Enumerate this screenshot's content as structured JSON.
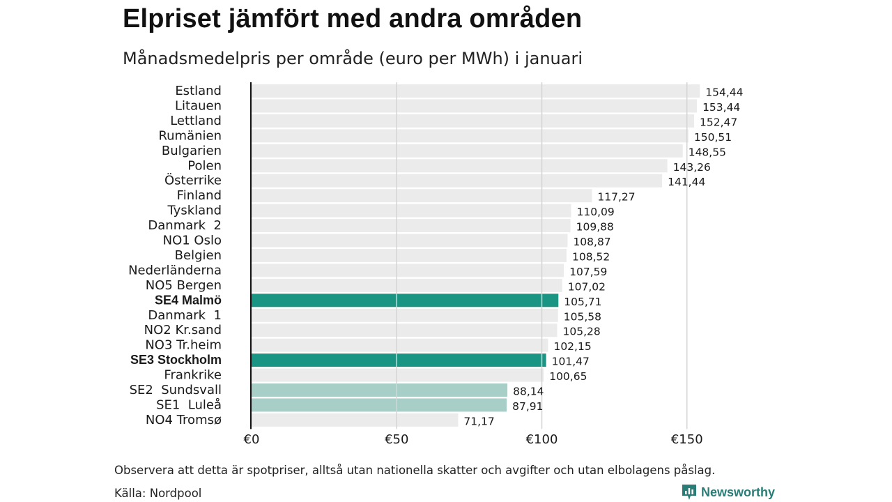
{
  "header": {
    "title": "Elpriset jämfört med andra områden",
    "subtitle": "Månadsmedelpris per område (euro per MWh) i januari"
  },
  "footer": {
    "note": "Observera att detta är spotpriser, alltså utan nationella skatter och avgifter och utan elbolagens påslag.",
    "source": "Källa: Nordpool",
    "brand": "Newsworthy"
  },
  "colors": {
    "default_bar": "#ebebeb",
    "highlight_bar": "#1a9483",
    "light_highlight_bar": "#a7cfc7",
    "gridline": "#d4d4d4",
    "axis": "#111111",
    "brand": "#2a7d76"
  },
  "chart_data": {
    "type": "bar",
    "orientation": "horizontal",
    "title": "Elpriset jämfört med andra områden",
    "subtitle": "Månadsmedelpris per område (euro per MWh) i januari",
    "xlabel": "",
    "ylabel": "",
    "xlim": [
      0,
      175
    ],
    "ticks": [
      0,
      50,
      100,
      150
    ],
    "tick_labels": [
      "€0",
      "€50",
      "€100",
      "€150"
    ],
    "grid": true,
    "categories": [
      "Estland",
      "Litauen",
      "Lettland",
      "Rumänien",
      "Bulgarien",
      "Polen",
      "Österrike",
      "Finland",
      "Tyskland",
      "Danmark  2",
      "NO1 Oslo",
      "Belgien",
      "Nederländerna",
      "NO5 Bergen",
      "SE4 Malmö",
      "Danmark  1",
      "NO2 Kr.sand",
      "NO3 Tr.heim",
      "SE3 Stockholm",
      "Frankrike",
      "SE2  Sundsvall",
      "SE1  Luleå",
      "NO4 Tromsø"
    ],
    "values": [
      154.44,
      153.44,
      152.47,
      150.51,
      148.55,
      143.26,
      141.44,
      117.27,
      110.09,
      109.88,
      108.87,
      108.52,
      107.59,
      107.02,
      105.71,
      105.58,
      105.28,
      102.15,
      101.47,
      100.65,
      88.14,
      87.91,
      71.17
    ],
    "value_labels": [
      "154,44",
      "153,44",
      "152,47",
      "150,51",
      "148,55",
      "143,26",
      "141,44",
      "117,27",
      "110,09",
      "109,88",
      "108,87",
      "108,52",
      "107,59",
      "107,02",
      "105,71",
      "105,58",
      "105,28",
      "102,15",
      "101,47",
      "100,65",
      "88,14",
      "87,91",
      "71,17"
    ],
    "highlight": [
      "none",
      "none",
      "none",
      "none",
      "none",
      "none",
      "none",
      "none",
      "none",
      "none",
      "none",
      "none",
      "none",
      "none",
      "strong",
      "none",
      "none",
      "none",
      "strong",
      "none",
      "light",
      "light",
      "none"
    ]
  }
}
